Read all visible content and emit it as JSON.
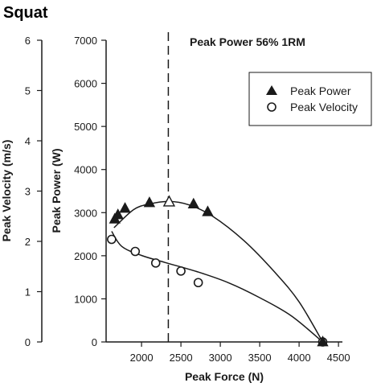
{
  "chart_data": {
    "type": "scatter",
    "title": "Squat",
    "annotation": "Peak Power 56% 1RM",
    "xlabel": "Peak Force (N)",
    "ylabel_left": "Peak Velocity (m/s)",
    "ylabel_right": "Peak Power (W)",
    "xlim": [
      1550,
      4550
    ],
    "x_ticks": [
      2000,
      2500,
      3000,
      3500,
      4000,
      4500
    ],
    "y_velocity_lim": [
      0,
      6
    ],
    "y_velocity_ticks": [
      0,
      1,
      2,
      3,
      4,
      5,
      6
    ],
    "y_power_lim": [
      0,
      7000
    ],
    "y_power_ticks": [
      0,
      1000,
      2000,
      3000,
      4000,
      5000,
      6000,
      7000
    ],
    "vertical_line_x": 2340,
    "legend_position": "top-right",
    "series": [
      {
        "name": "Peak Power",
        "marker": "filled-triangle",
        "axis": "power",
        "x": [
          1660,
          1700,
          1790,
          2100,
          2350,
          2660,
          2840,
          4300
        ],
        "y": [
          2850,
          2950,
          3100,
          3230,
          3250,
          3200,
          3020,
          0
        ],
        "hollow_point_x": 2350
      },
      {
        "name": "Peak Velocity",
        "marker": "open-circle",
        "axis": "velocity",
        "x": [
          1620,
          1920,
          2180,
          2500,
          2720,
          4300
        ],
        "y": [
          2.04,
          1.8,
          1.57,
          1.41,
          1.18,
          0
        ]
      }
    ],
    "fit_curves": [
      {
        "series": "Peak Power",
        "x": [
          1650,
          1900,
          2100,
          2350,
          2600,
          2900,
          3300,
          3700,
          4000,
          4300
        ],
        "y": [
          2650,
          3070,
          3200,
          3260,
          3180,
          2920,
          2350,
          1600,
          930,
          0
        ]
      },
      {
        "series": "Peak Velocity",
        "x": [
          1620,
          1750,
          2000,
          2300,
          2700,
          3100,
          3500,
          3900,
          4300
        ],
        "y": [
          2.2,
          1.9,
          1.72,
          1.58,
          1.4,
          1.18,
          0.88,
          0.52,
          0
        ]
      }
    ]
  }
}
